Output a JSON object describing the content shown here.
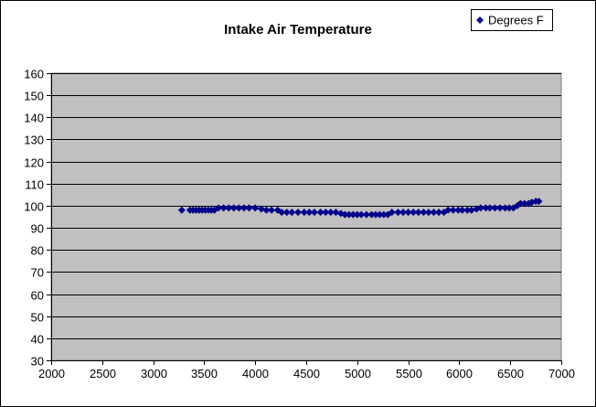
{
  "chart_data": {
    "type": "scatter",
    "title": "Intake Air Temperature",
    "xlabel": "",
    "ylabel": "",
    "xlim": [
      2000,
      7000
    ],
    "ylim": [
      30,
      160
    ],
    "xticks": [
      2000,
      2500,
      3000,
      3500,
      4000,
      4500,
      5000,
      5500,
      6000,
      6500,
      7000
    ],
    "yticks": [
      30,
      40,
      50,
      60,
      70,
      80,
      90,
      100,
      110,
      120,
      130,
      140,
      150,
      160
    ],
    "grid": "horizontal",
    "legend_position": "top-right",
    "series": [
      {
        "name": "Degrees F",
        "marker": "diamond",
        "color": "#00008B",
        "points": [
          [
            3280,
            98
          ],
          [
            3360,
            98
          ],
          [
            3390,
            98
          ],
          [
            3420,
            98
          ],
          [
            3450,
            98
          ],
          [
            3480,
            98
          ],
          [
            3510,
            98
          ],
          [
            3540,
            98
          ],
          [
            3570,
            98
          ],
          [
            3600,
            98
          ],
          [
            3640,
            99
          ],
          [
            3690,
            99
          ],
          [
            3740,
            99
          ],
          [
            3790,
            99
          ],
          [
            3840,
            99
          ],
          [
            3890,
            99
          ],
          [
            3940,
            99
          ],
          [
            4000,
            99
          ],
          [
            4060,
            98.5
          ],
          [
            4110,
            98
          ],
          [
            4160,
            98
          ],
          [
            4220,
            98
          ],
          [
            4260,
            97
          ],
          [
            4310,
            97
          ],
          [
            4360,
            97
          ],
          [
            4420,
            97
          ],
          [
            4480,
            97
          ],
          [
            4530,
            97
          ],
          [
            4580,
            97
          ],
          [
            4640,
            97
          ],
          [
            4690,
            97
          ],
          [
            4740,
            97
          ],
          [
            4790,
            97
          ],
          [
            4840,
            96.5
          ],
          [
            4880,
            96
          ],
          [
            4920,
            96
          ],
          [
            4960,
            96
          ],
          [
            5000,
            96
          ],
          [
            5040,
            96
          ],
          [
            5090,
            96
          ],
          [
            5140,
            96
          ],
          [
            5180,
            96
          ],
          [
            5220,
            96
          ],
          [
            5260,
            96
          ],
          [
            5300,
            96
          ],
          [
            5340,
            97
          ],
          [
            5400,
            97
          ],
          [
            5450,
            97
          ],
          [
            5500,
            97
          ],
          [
            5550,
            97
          ],
          [
            5600,
            97
          ],
          [
            5650,
            97
          ],
          [
            5700,
            97
          ],
          [
            5750,
            97
          ],
          [
            5800,
            97
          ],
          [
            5850,
            97
          ],
          [
            5890,
            98
          ],
          [
            5940,
            98
          ],
          [
            5990,
            98
          ],
          [
            6030,
            98
          ],
          [
            6080,
            98
          ],
          [
            6120,
            98
          ],
          [
            6170,
            98.5
          ],
          [
            6210,
            99
          ],
          [
            6260,
            99
          ],
          [
            6300,
            99
          ],
          [
            6350,
            99
          ],
          [
            6400,
            99
          ],
          [
            6450,
            99
          ],
          [
            6490,
            99
          ],
          [
            6530,
            99
          ],
          [
            6570,
            100
          ],
          [
            6600,
            101
          ],
          [
            6640,
            101
          ],
          [
            6680,
            101
          ],
          [
            6710,
            101.5
          ],
          [
            6750,
            102
          ],
          [
            6780,
            102
          ]
        ]
      }
    ]
  },
  "colors": {
    "plot_background": "#C0C0C0",
    "gridline": "#000000",
    "marker": "#00008B"
  }
}
